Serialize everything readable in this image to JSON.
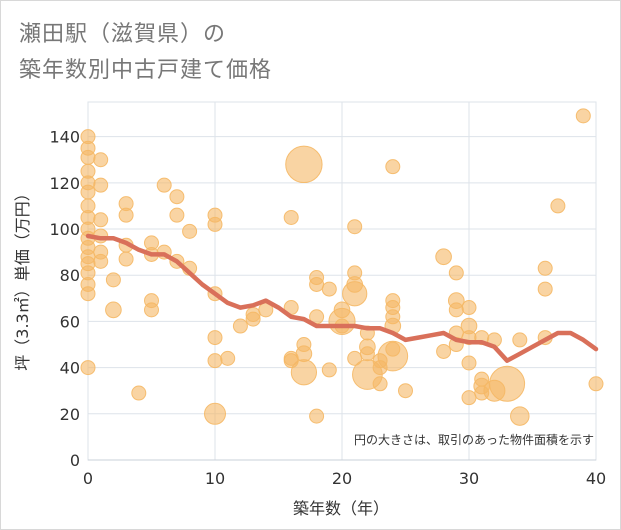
{
  "title": {
    "line1": "瀬田駅（滋賀県）の",
    "line2": "築年数別中古戸建て価格"
  },
  "chart_data": {
    "type": "scatter",
    "xlabel": "築年数（年）",
    "ylabel": "坪（3.3㎡）単価（万円）",
    "xlim": [
      0,
      40
    ],
    "ylim": [
      0,
      155
    ],
    "x_ticks": [
      0,
      10,
      20,
      30,
      40
    ],
    "y_ticks": [
      0,
      20,
      40,
      60,
      80,
      100,
      120,
      140
    ],
    "grid": true,
    "note": "円の大きさは、取引のあった物件面積を示す",
    "colors": {
      "bubble": "#f5b865",
      "line": "#d9705a",
      "grid": "#dde3ea"
    },
    "series": [
      {
        "kind": "bubble",
        "points": [
          {
            "x": 0,
            "y": 140,
            "s": 4
          },
          {
            "x": 0,
            "y": 135,
            "s": 4
          },
          {
            "x": 0,
            "y": 131,
            "s": 4
          },
          {
            "x": 0,
            "y": 125,
            "s": 4
          },
          {
            "x": 0,
            "y": 120,
            "s": 4
          },
          {
            "x": 0,
            "y": 116,
            "s": 4
          },
          {
            "x": 0,
            "y": 110,
            "s": 4
          },
          {
            "x": 0,
            "y": 105,
            "s": 4
          },
          {
            "x": 0,
            "y": 100,
            "s": 4
          },
          {
            "x": 0,
            "y": 96,
            "s": 4
          },
          {
            "x": 0,
            "y": 92,
            "s": 4
          },
          {
            "x": 0,
            "y": 88,
            "s": 4
          },
          {
            "x": 0,
            "y": 85,
            "s": 4
          },
          {
            "x": 0,
            "y": 81,
            "s": 4
          },
          {
            "x": 0,
            "y": 76,
            "s": 4
          },
          {
            "x": 0,
            "y": 72,
            "s": 4
          },
          {
            "x": 0,
            "y": 40,
            "s": 4
          },
          {
            "x": 1,
            "y": 130,
            "s": 4
          },
          {
            "x": 1,
            "y": 119,
            "s": 4
          },
          {
            "x": 1,
            "y": 104,
            "s": 4
          },
          {
            "x": 1,
            "y": 97,
            "s": 4
          },
          {
            "x": 1,
            "y": 90,
            "s": 4
          },
          {
            "x": 1,
            "y": 86,
            "s": 4
          },
          {
            "x": 2,
            "y": 78,
            "s": 4
          },
          {
            "x": 2,
            "y": 65,
            "s": 5
          },
          {
            "x": 3,
            "y": 111,
            "s": 4
          },
          {
            "x": 3,
            "y": 106,
            "s": 4
          },
          {
            "x": 3,
            "y": 93,
            "s": 4
          },
          {
            "x": 3,
            "y": 87,
            "s": 4
          },
          {
            "x": 4,
            "y": 29,
            "s": 4
          },
          {
            "x": 5,
            "y": 94,
            "s": 4
          },
          {
            "x": 5,
            "y": 89,
            "s": 4
          },
          {
            "x": 5,
            "y": 69,
            "s": 4
          },
          {
            "x": 5,
            "y": 65,
            "s": 4
          },
          {
            "x": 6,
            "y": 119,
            "s": 4
          },
          {
            "x": 6,
            "y": 90,
            "s": 4
          },
          {
            "x": 7,
            "y": 114,
            "s": 4
          },
          {
            "x": 7,
            "y": 106,
            "s": 4
          },
          {
            "x": 7,
            "y": 86,
            "s": 4
          },
          {
            "x": 8,
            "y": 99,
            "s": 4
          },
          {
            "x": 8,
            "y": 83,
            "s": 4
          },
          {
            "x": 10,
            "y": 106,
            "s": 4
          },
          {
            "x": 10,
            "y": 102,
            "s": 4
          },
          {
            "x": 10,
            "y": 72,
            "s": 4
          },
          {
            "x": 10,
            "y": 53,
            "s": 4
          },
          {
            "x": 10,
            "y": 43,
            "s": 4
          },
          {
            "x": 10,
            "y": 20,
            "s": 9
          },
          {
            "x": 11,
            "y": 44,
            "s": 4
          },
          {
            "x": 12,
            "y": 58,
            "s": 4
          },
          {
            "x": 13,
            "y": 63,
            "s": 4
          },
          {
            "x": 13,
            "y": 61,
            "s": 4
          },
          {
            "x": 14,
            "y": 65,
            "s": 4
          },
          {
            "x": 16,
            "y": 105,
            "s": 4
          },
          {
            "x": 16,
            "y": 66,
            "s": 4
          },
          {
            "x": 16,
            "y": 44,
            "s": 4
          },
          {
            "x": 16,
            "y": 43,
            "s": 4
          },
          {
            "x": 17,
            "y": 128,
            "s": 27
          },
          {
            "x": 17,
            "y": 50,
            "s": 4
          },
          {
            "x": 17,
            "y": 46,
            "s": 5
          },
          {
            "x": 17,
            "y": 38,
            "s": 13
          },
          {
            "x": 18,
            "y": 79,
            "s": 4
          },
          {
            "x": 18,
            "y": 76,
            "s": 4
          },
          {
            "x": 18,
            "y": 62,
            "s": 4
          },
          {
            "x": 18,
            "y": 19,
            "s": 4
          },
          {
            "x": 19,
            "y": 74,
            "s": 4
          },
          {
            "x": 19,
            "y": 39,
            "s": 4
          },
          {
            "x": 20,
            "y": 65,
            "s": 5
          },
          {
            "x": 20,
            "y": 60,
            "s": 14
          },
          {
            "x": 20,
            "y": 58,
            "s": 4
          },
          {
            "x": 21,
            "y": 101,
            "s": 4
          },
          {
            "x": 21,
            "y": 81,
            "s": 4
          },
          {
            "x": 21,
            "y": 76,
            "s": 5
          },
          {
            "x": 21,
            "y": 72,
            "s": 12
          },
          {
            "x": 21,
            "y": 44,
            "s": 4
          },
          {
            "x": 22,
            "y": 55,
            "s": 4
          },
          {
            "x": 22,
            "y": 49,
            "s": 5
          },
          {
            "x": 22,
            "y": 37,
            "s": 18
          },
          {
            "x": 22,
            "y": 46,
            "s": 4
          },
          {
            "x": 23,
            "y": 43,
            "s": 4
          },
          {
            "x": 23,
            "y": 40,
            "s": 4
          },
          {
            "x": 23,
            "y": 33,
            "s": 4
          },
          {
            "x": 24,
            "y": 127,
            "s": 4
          },
          {
            "x": 24,
            "y": 69,
            "s": 4
          },
          {
            "x": 24,
            "y": 66,
            "s": 4
          },
          {
            "x": 24,
            "y": 62,
            "s": 4
          },
          {
            "x": 24,
            "y": 58,
            "s": 5
          },
          {
            "x": 24,
            "y": 48,
            "s": 4
          },
          {
            "x": 24,
            "y": 45,
            "s": 18
          },
          {
            "x": 25,
            "y": 30,
            "s": 4
          },
          {
            "x": 28,
            "y": 88,
            "s": 5
          },
          {
            "x": 28,
            "y": 47,
            "s": 4
          },
          {
            "x": 29,
            "y": 81,
            "s": 4
          },
          {
            "x": 29,
            "y": 69,
            "s": 5
          },
          {
            "x": 29,
            "y": 65,
            "s": 4
          },
          {
            "x": 29,
            "y": 55,
            "s": 4
          },
          {
            "x": 29,
            "y": 50,
            "s": 4
          },
          {
            "x": 30,
            "y": 66,
            "s": 4
          },
          {
            "x": 30,
            "y": 58,
            "s": 5
          },
          {
            "x": 30,
            "y": 53,
            "s": 4
          },
          {
            "x": 30,
            "y": 42,
            "s": 4
          },
          {
            "x": 30,
            "y": 27,
            "s": 4
          },
          {
            "x": 31,
            "y": 53,
            "s": 4
          },
          {
            "x": 31,
            "y": 35,
            "s": 4
          },
          {
            "x": 31,
            "y": 32,
            "s": 5
          },
          {
            "x": 31,
            "y": 29,
            "s": 4
          },
          {
            "x": 32,
            "y": 52,
            "s": 4
          },
          {
            "x": 32,
            "y": 30,
            "s": 9
          },
          {
            "x": 33,
            "y": 33,
            "s": 25
          },
          {
            "x": 34,
            "y": 52,
            "s": 4
          },
          {
            "x": 34,
            "y": 19,
            "s": 7
          },
          {
            "x": 36,
            "y": 83,
            "s": 4
          },
          {
            "x": 36,
            "y": 74,
            "s": 4
          },
          {
            "x": 36,
            "y": 53,
            "s": 4
          },
          {
            "x": 37,
            "y": 110,
            "s": 4
          },
          {
            "x": 39,
            "y": 149,
            "s": 4
          },
          {
            "x": 40,
            "y": 33,
            "s": 4
          }
        ]
      },
      {
        "kind": "line",
        "x": [
          0,
          1,
          2,
          3,
          4,
          5,
          6,
          7,
          8,
          9,
          10,
          11,
          12,
          13,
          14,
          15,
          16,
          17,
          18,
          19,
          20,
          21,
          22,
          23,
          24,
          25,
          26,
          27,
          28,
          29,
          30,
          31,
          32,
          33,
          34,
          35,
          36,
          37,
          38,
          39,
          40
        ],
        "y": [
          97,
          96,
          96,
          94,
          91,
          89,
          89,
          86,
          81,
          76,
          72,
          68,
          66,
          67,
          69,
          66,
          62,
          61,
          58,
          58,
          58,
          58,
          57,
          57,
          55,
          52,
          53,
          54,
          55,
          52,
          51,
          51,
          49,
          43,
          46,
          49,
          52,
          55,
          55,
          52,
          48
        ]
      }
    ]
  }
}
